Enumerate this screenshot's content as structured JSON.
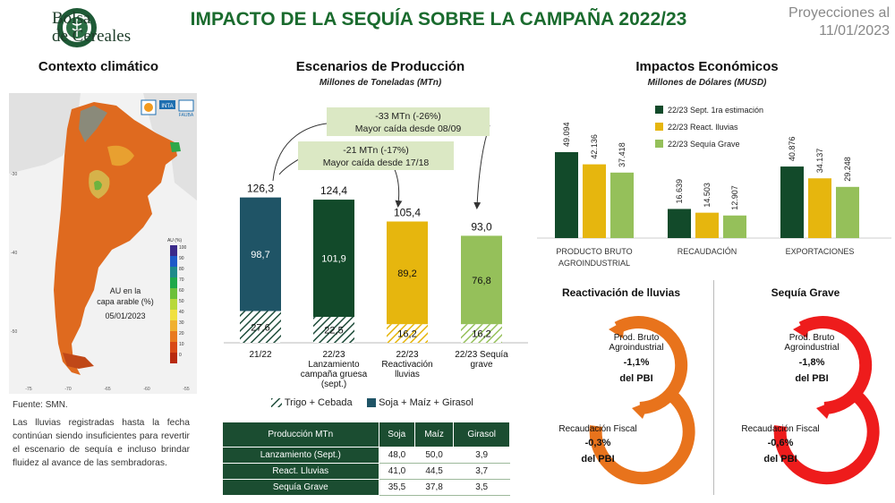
{
  "header": {
    "logo_line1": "Bolsa",
    "logo_line2": "de Cereales",
    "title": "IMPACTO DE LA SEQUÍA SOBRE LA CAMPAÑA 2022/23",
    "projection_line1": "Proyecciones al",
    "projection_line2": "11/01/2023"
  },
  "climate": {
    "title": "Contexto climático",
    "map_legend_title": "AU (%)",
    "map_legend_ticks": [
      "100",
      "90",
      "80",
      "70",
      "60",
      "50",
      "40",
      "30",
      "20",
      "10",
      "0"
    ],
    "map_caption_line1": "AU en la",
    "map_caption_line2": "capa arable (%)",
    "map_date": "05/01/2023",
    "map_lat_ticks": [
      "-30",
      "-40",
      "-50"
    ],
    "map_lon_ticks": [
      "-75",
      "-70",
      "-65",
      "-60",
      "-55"
    ],
    "logo_inta": "INTA",
    "logo_fauba": "FAUBA",
    "source": "Fuente: SMN.",
    "text": "Las lluvias registradas hasta la fecha continúan siendo insuficientes para revertir el escenario de sequía e incluso brindar fluidez al avance de las sembradoras."
  },
  "production": {
    "title": "Escenarios de Producción",
    "subtitle": "Millones de Toneladas (MTn)",
    "callout1_line1": "-33 MTn (-26%)",
    "callout1_line2": "Mayor caída desde 08/09",
    "callout2_line1": "-21 MTn (-17%)",
    "callout2_line2": "Mayor caída desde 17/18",
    "legend_trigo": "Trigo + Cebada",
    "legend_soja": "Soja + Maíz + Girasol",
    "colors": {
      "trigo_pattern": "#1e4d3a",
      "soja": "#1f5466",
      "lanzamiento": "#124a2a",
      "reactivacion": "#e6b60e",
      "sequia": "#95c05a"
    }
  },
  "chart_data": [
    {
      "type": "bar",
      "stacked": true,
      "categories": [
        "21/22",
        "22/23 Lanzamiento campaña gruesa (sept.)",
        "22/23 Reactivación lluvias",
        "22/23 Sequía grave"
      ],
      "category_lines": [
        [
          "21/22"
        ],
        [
          "22/23",
          "Lanzamiento",
          "campaña gruesa",
          "(sept.)"
        ],
        [
          "22/23",
          "Reactivación",
          "lluvias"
        ],
        [
          "22/23 Sequía",
          "grave"
        ]
      ],
      "series": [
        {
          "name": "Trigo + Cebada",
          "values": [
            27.6,
            22.5,
            16.2,
            16.2
          ]
        },
        {
          "name": "Soja + Maíz + Girasol",
          "values": [
            98.7,
            101.9,
            89.2,
            76.8
          ]
        }
      ],
      "totals": [
        126.3,
        124.4,
        105.4,
        93.0
      ],
      "value_labels_trigo": [
        "27,6",
        "22,5",
        "16,2",
        "16,2"
      ],
      "value_labels_soja": [
        "98,7",
        "101,9",
        "89,2",
        "76,8"
      ],
      "total_labels": [
        "126,3",
        "124,4",
        "105,4",
        "93,0"
      ],
      "ylim": [
        0,
        140
      ]
    },
    {
      "type": "bar",
      "categories": [
        "PRODUCTO BRUTO AGROINDUSTRIAL",
        "RECAUDACIÓN",
        "EXPORTACIONES"
      ],
      "category_lines": [
        [
          "PRODUCTO BRUTO",
          "AGROINDUSTRIAL"
        ],
        [
          "RECAUDACIÓN"
        ],
        [
          "EXPORTACIONES"
        ]
      ],
      "series": [
        {
          "name": "22/23 Sept. 1ra estimación",
          "values": [
            49094,
            16639,
            40876
          ],
          "labels": [
            "49.094",
            "16.639",
            "40.876"
          ],
          "color": "#124a2a"
        },
        {
          "name": "22/23 React. lluvias",
          "values": [
            42136,
            14503,
            34137
          ],
          "labels": [
            "42.136",
            "14.503",
            "34.137"
          ],
          "color": "#e6b60e"
        },
        {
          "name": "22/23 Sequía Grave",
          "values": [
            37418,
            12907,
            29248
          ],
          "labels": [
            "37.418",
            "12.907",
            "29.248"
          ],
          "color": "#95c05a"
        }
      ],
      "ylim": [
        0,
        55000
      ],
      "legend_position": "top-center"
    }
  ],
  "economic": {
    "title": "Impactos Económicos",
    "subtitle": "Millones de Dólares (MUSD)"
  },
  "table": {
    "headers": [
      "Producción MTn",
      "Soja",
      "Maíz",
      "Girasol"
    ],
    "rows": [
      [
        "Lanzamiento (Sept.)",
        "48,0",
        "50,0",
        "3,9"
      ],
      [
        "React. Lluvias",
        "41,0",
        "44,5",
        "3,7"
      ],
      [
        "Sequía Grave",
        "35,5",
        "37,8",
        "3,5"
      ]
    ]
  },
  "rings": {
    "left": {
      "title": "Reactivación de lluvias",
      "color": "#e8731c",
      "pbi_label_1": "Prod. Bruto",
      "pbi_label_2": "Agroindustrial",
      "pbi_value": "-1,1%",
      "pbi_suffix": "del PBI",
      "rec_label": "Recaudación Fiscal",
      "rec_value": "-0,3%",
      "rec_suffix": "del PBI"
    },
    "right": {
      "title": "Sequía Grave",
      "color": "#ee1c1c",
      "pbi_label_1": "Prod. Bruto",
      "pbi_label_2": "Agroindustrial",
      "pbi_value": "-1,8%",
      "pbi_suffix": "del PBI",
      "rec_label": "Recaudación Fiscal",
      "rec_value": "-0,6%",
      "rec_suffix": "del PBI"
    }
  }
}
